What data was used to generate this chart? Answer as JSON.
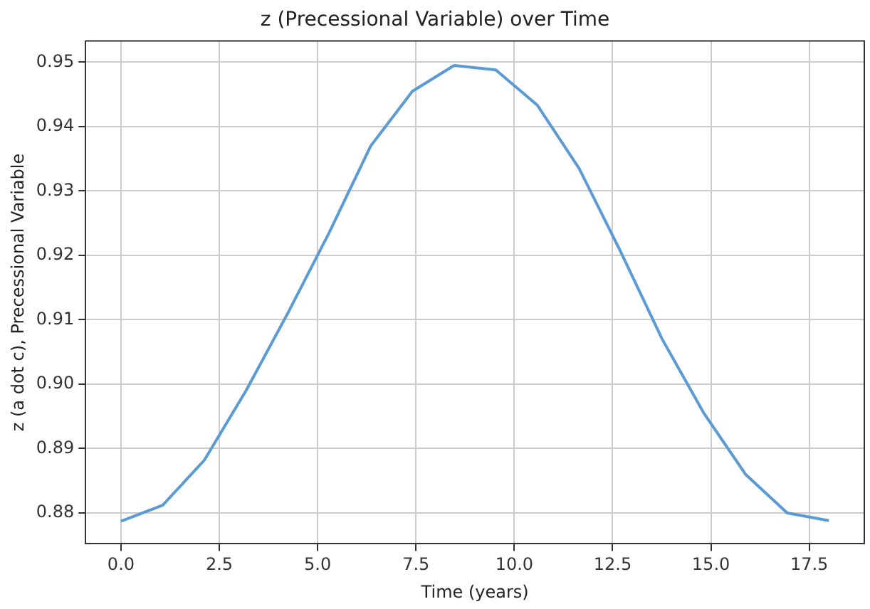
{
  "chart_data": {
    "type": "line",
    "title": "z (Precessional Variable) over Time",
    "xlabel": "Time (years)",
    "ylabel": "z (a dot c), Precessional Variable",
    "x": [
      0,
      1.06,
      2.12,
      3.18,
      4.24,
      5.29,
      6.35,
      7.41,
      8.47,
      9.53,
      10.59,
      11.65,
      12.71,
      13.76,
      14.82,
      15.88,
      16.94,
      18
    ],
    "series": [
      {
        "color": "#5b9bd5",
        "values": [
          0.8787,
          0.8812,
          0.8882,
          0.899,
          0.911,
          0.9235,
          0.937,
          0.9455,
          0.9495,
          0.9488,
          0.9433,
          0.9335,
          0.9205,
          0.907,
          0.8955,
          0.886,
          0.88,
          0.8788
        ]
      }
    ],
    "xlim": [
      -0.9,
      18.9
    ],
    "xticks": [
      {
        "value": 0,
        "label": "0.0"
      },
      {
        "value": 2.5,
        "label": "2.5"
      },
      {
        "value": 5,
        "label": "5.0"
      },
      {
        "value": 7.5,
        "label": "7.5"
      },
      {
        "value": 10,
        "label": "10.0"
      },
      {
        "value": 12.5,
        "label": "12.5"
      },
      {
        "value": 15,
        "label": "15.0"
      },
      {
        "value": 17.5,
        "label": "17.5"
      }
    ],
    "ylim": [
      0.8752,
      0.9533
    ],
    "yticks": [
      {
        "value": 0.88,
        "label": "0.88"
      },
      {
        "value": 0.89,
        "label": "0.89"
      },
      {
        "value": 0.9,
        "label": "0.90"
      },
      {
        "value": 0.91,
        "label": "0.91"
      },
      {
        "value": 0.92,
        "label": "0.92"
      },
      {
        "value": 0.93,
        "label": "0.93"
      },
      {
        "value": 0.94,
        "label": "0.94"
      },
      {
        "value": 0.95,
        "label": "0.95"
      }
    ],
    "grid": true,
    "marker": "none",
    "line_style": "solid",
    "legend": false
  }
}
